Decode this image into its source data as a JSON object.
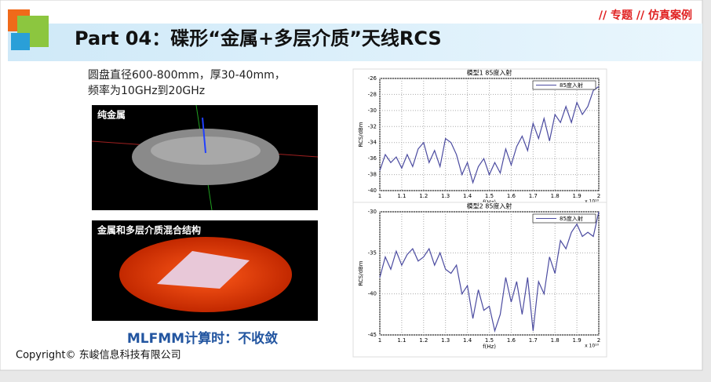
{
  "header": {
    "tag": "// 专题 // 仿真案例",
    "title": "Part 04：碟形“金属+多层介质”天线RCS"
  },
  "description": [
    "圆盘直径600-800mm，厚30-40mm，",
    "频率为10GHz到20GHz"
  ],
  "images": [
    {
      "label": "纯金属"
    },
    {
      "label": "金属和多层介质混合结构"
    }
  ],
  "conclusion": "MLFMM计算时：不收敛",
  "footer": "Copyright© 东峻信息科技有限公司",
  "chart_data": [
    {
      "type": "line",
      "title": "模型1 85度入射",
      "x_label": "f(Hz)",
      "x_multiplier": "x 10¹⁰",
      "y_label": "RCS/dBm",
      "grid": true,
      "legend": "upper right",
      "x": [
        1,
        1.025,
        1.05,
        1.075,
        1.1,
        1.125,
        1.15,
        1.175,
        1.2,
        1.225,
        1.25,
        1.275,
        1.3,
        1.325,
        1.35,
        1.375,
        1.4,
        1.425,
        1.45,
        1.475,
        1.5,
        1.525,
        1.55,
        1.575,
        1.6,
        1.625,
        1.65,
        1.675,
        1.7,
        1.725,
        1.75,
        1.775,
        1.8,
        1.825,
        1.85,
        1.875,
        1.9,
        1.925,
        1.95,
        1.975,
        2
      ],
      "series": [
        {
          "name": "85度入射",
          "color": "#4b4ba0",
          "values": [
            -37.5,
            -35.5,
            -36.5,
            -35.8,
            -37.2,
            -35.5,
            -37,
            -34.8,
            -34,
            -36.5,
            -35,
            -37,
            -33.5,
            -34,
            -35.5,
            -38,
            -36.5,
            -39,
            -37,
            -36,
            -38,
            -36.5,
            -37.8,
            -34.8,
            -36.8,
            -34.5,
            -33.2,
            -35,
            -31.6,
            -33.5,
            -31,
            -33.8,
            -30.5,
            -31.5,
            -29.5,
            -31.5,
            -29,
            -30.5,
            -29.5,
            -27.5,
            -27
          ]
        }
      ],
      "xlim": [
        1,
        2
      ],
      "xticks": [
        1,
        1.1,
        1.2,
        1.3,
        1.4,
        1.5,
        1.6,
        1.7,
        1.8,
        1.9,
        2
      ],
      "ylim": [
        -40,
        -26
      ],
      "yticks": [
        -40,
        -38,
        -36,
        -34,
        -32,
        -30,
        -28,
        -26
      ]
    },
    {
      "type": "line",
      "title": "模型2 85度入射",
      "x_label": "f(Hz)",
      "x_multiplier": "x 10¹⁰",
      "y_label": "RCS/dBm",
      "grid": true,
      "legend": "upper right",
      "x": [
        1,
        1.025,
        1.05,
        1.075,
        1.1,
        1.125,
        1.15,
        1.175,
        1.2,
        1.225,
        1.25,
        1.275,
        1.3,
        1.325,
        1.35,
        1.375,
        1.4,
        1.425,
        1.45,
        1.475,
        1.5,
        1.525,
        1.55,
        1.575,
        1.6,
        1.625,
        1.65,
        1.675,
        1.7,
        1.725,
        1.75,
        1.775,
        1.8,
        1.825,
        1.85,
        1.875,
        1.9,
        1.925,
        1.95,
        1.975,
        2
      ],
      "series": [
        {
          "name": "85度入射",
          "color": "#4b4ba0",
          "values": [
            -38,
            -35.5,
            -37,
            -34.8,
            -36.5,
            -35.2,
            -34.5,
            -36,
            -35.5,
            -34.5,
            -36.5,
            -35,
            -37,
            -37.5,
            -36.5,
            -40,
            -39,
            -43,
            -39.5,
            -42,
            -41.5,
            -44.5,
            -42.5,
            -38,
            -41,
            -38.5,
            -42.5,
            -38,
            -44.5,
            -38.5,
            -40,
            -35.5,
            -37.5,
            -33.5,
            -34.5,
            -32.5,
            -31.5,
            -33,
            -32.5,
            -33,
            -30
          ]
        }
      ],
      "xlim": [
        1,
        2
      ],
      "xticks": [
        1,
        1.1,
        1.2,
        1.3,
        1.4,
        1.5,
        1.6,
        1.7,
        1.8,
        1.9,
        2
      ],
      "ylim": [
        -45,
        -30
      ],
      "yticks": [
        -45,
        -40,
        -35,
        -30
      ]
    }
  ]
}
